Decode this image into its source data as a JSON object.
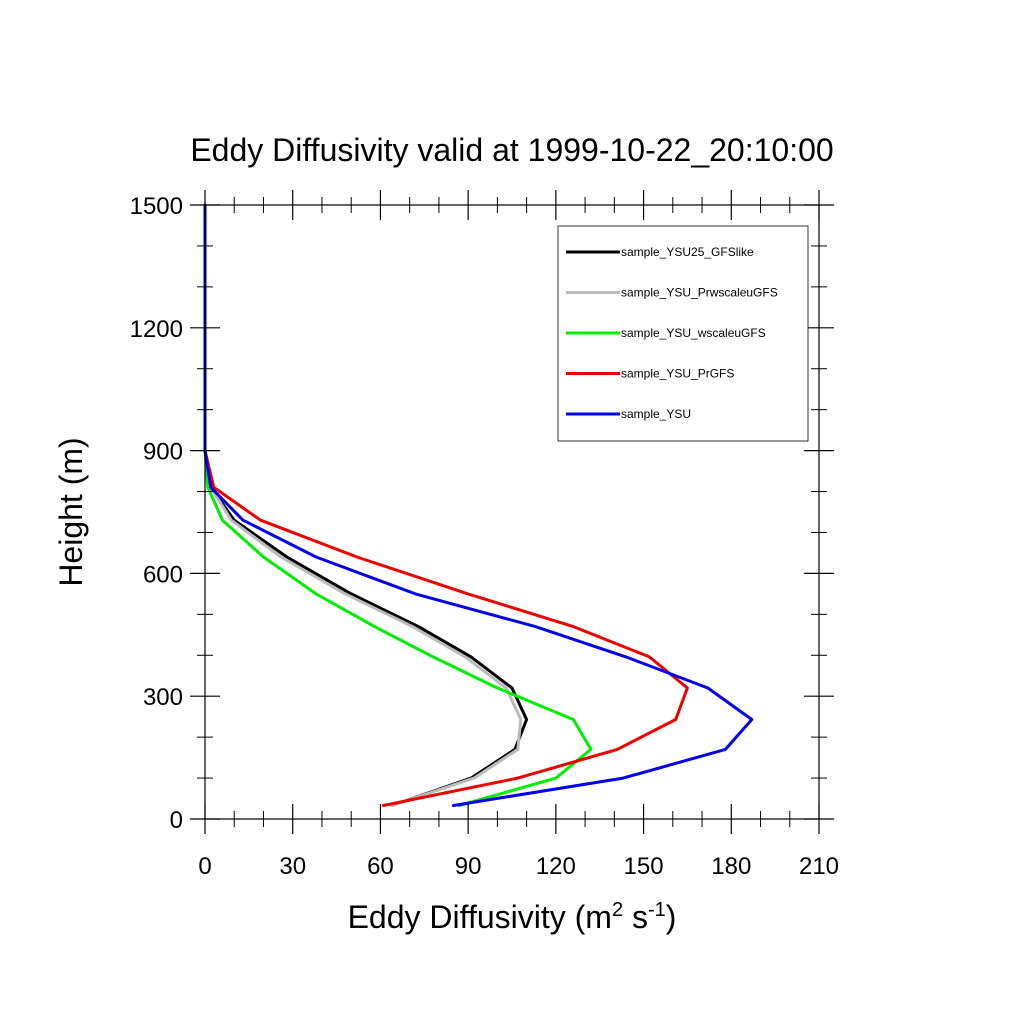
{
  "chart_data": {
    "type": "line",
    "title": "Eddy Diffusivity valid at 1999-10-22_20:10:00",
    "xlabel": {
      "base": "Eddy Diffusivity (m",
      "sup1": "2",
      "mid": " s",
      "sup2": "-1",
      "end": ")"
    },
    "ylabel": "Height (m)",
    "xlim": [
      0,
      210
    ],
    "ylim": [
      0,
      1500
    ],
    "xticks": [
      0,
      30,
      60,
      90,
      120,
      150,
      180,
      210
    ],
    "yticks": [
      0,
      300,
      600,
      900,
      1200,
      1500
    ],
    "xtick_labels": [
      "0",
      "30",
      "60",
      "90",
      "120",
      "150",
      "180",
      "210"
    ],
    "ytick_labels": [
      "0",
      "300",
      "600",
      "900",
      "1200",
      "1500"
    ],
    "legend_position": "top-right",
    "grid": false,
    "series": [
      {
        "name": "sample_YSU25_GFSlike",
        "color": "#000000",
        "x": [
          64,
          91,
          106,
          110,
          105,
          91,
          73,
          50,
          28,
          10,
          2,
          0,
          0,
          0
        ],
        "y": [
          33,
          100,
          170,
          243,
          320,
          396,
          470,
          550,
          640,
          730,
          810,
          900,
          1200,
          1500
        ]
      },
      {
        "name": "sample_YSU_PrwscaleuGFS",
        "color": "#bbbbbb",
        "x": [
          64,
          92,
          107,
          108,
          103,
          89,
          71,
          48,
          26,
          9,
          2,
          0,
          0,
          0
        ],
        "y": [
          33,
          100,
          170,
          243,
          320,
          396,
          470,
          550,
          640,
          730,
          810,
          900,
          1200,
          1500
        ]
      },
      {
        "name": "sample_YSU_wscaleuGFS",
        "color": "#00ee00",
        "x": [
          87,
          120,
          132,
          126,
          100,
          78,
          58,
          38,
          20,
          6,
          1,
          0,
          0,
          0
        ],
        "y": [
          33,
          100,
          170,
          243,
          320,
          396,
          470,
          550,
          640,
          730,
          810,
          900,
          1200,
          1500
        ]
      },
      {
        "name": "sample_YSU_PrGFS",
        "color": "#ee0000",
        "x": [
          61,
          107,
          141,
          161,
          165,
          152,
          126,
          90,
          52,
          19,
          3,
          0,
          0,
          0
        ],
        "y": [
          33,
          100,
          170,
          243,
          320,
          396,
          470,
          550,
          640,
          730,
          810,
          900,
          1200,
          1500
        ]
      },
      {
        "name": "sample_YSU",
        "color": "#0000ee",
        "x": [
          85,
          143,
          178,
          187,
          172,
          144,
          113,
          72,
          38,
          13,
          2,
          0,
          0,
          0
        ],
        "y": [
          33,
          100,
          170,
          243,
          320,
          396,
          470,
          550,
          640,
          730,
          810,
          900,
          1200,
          1500
        ]
      }
    ]
  }
}
